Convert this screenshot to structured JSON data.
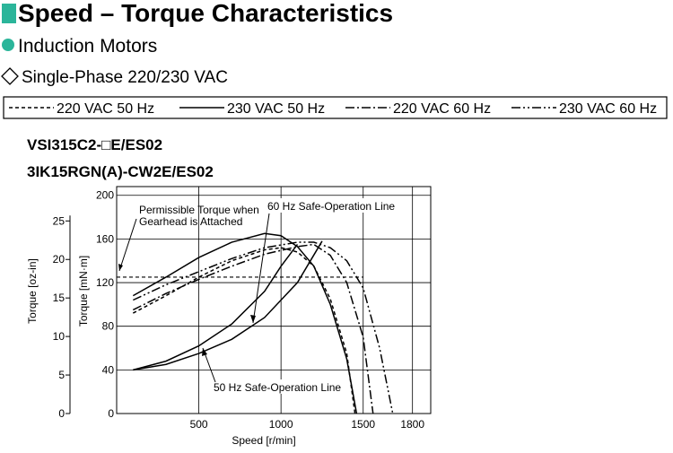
{
  "header": {
    "title": "Speed – Torque Characteristics",
    "subtitle": "Induction Motors",
    "supply": "Single-Phase 220/230 VAC"
  },
  "models": [
    "VSI315C2-□E/ES02",
    "3IK15RGN(A)-CW2E/ES02"
  ],
  "chart_data": {
    "type": "line",
    "x_label": "Speed [r/min]",
    "y_label": "Torque [mN·m]",
    "y2_label": "Torque [oz-in]",
    "xlim": [
      0,
      1900
    ],
    "xticks": [
      500,
      1000,
      1500,
      1800
    ],
    "ylim": [
      0,
      208
    ],
    "yticks": [
      0,
      40,
      80,
      120,
      160,
      200
    ],
    "y2lim": [
      0,
      29.46
    ],
    "y2ticks": [
      0,
      5,
      10,
      15,
      20,
      25
    ],
    "grid": true,
    "series": [
      {
        "name": "220 VAC 50 Hz",
        "style": "dashed",
        "color": "#000000",
        "x": [
          100,
          300,
          500,
          700,
          900,
          1000,
          1100,
          1200,
          1300,
          1400,
          1450
        ],
        "values": [
          92,
          108,
          125,
          140,
          150,
          152,
          148,
          135,
          105,
          55,
          0
        ]
      },
      {
        "name": "230 VAC 50 Hz",
        "style": "solid",
        "color": "#000000",
        "x": [
          100,
          300,
          500,
          700,
          900,
          1000,
          1100,
          1200,
          1300,
          1400,
          1460
        ],
        "values": [
          108,
          125,
          143,
          157,
          165,
          163,
          153,
          135,
          100,
          50,
          0
        ]
      },
      {
        "name": "220 VAC 60 Hz",
        "style": "dash-dot",
        "color": "#000000",
        "x": [
          100,
          300,
          500,
          700,
          900,
          1100,
          1200,
          1300,
          1400,
          1500,
          1560
        ],
        "values": [
          95,
          110,
          123,
          135,
          146,
          153,
          155,
          145,
          120,
          70,
          0
        ]
      },
      {
        "name": "230 VAC 60 Hz",
        "style": "dash-dot-dot",
        "color": "#000000",
        "x": [
          100,
          300,
          500,
          700,
          900,
          1100,
          1200,
          1300,
          1400,
          1500,
          1600,
          1680
        ],
        "values": [
          104,
          118,
          130,
          142,
          152,
          157,
          157,
          152,
          140,
          115,
          60,
          0
        ]
      }
    ],
    "permissible": {
      "label": [
        "Permissible Torque when",
        "Gearhead is Attached"
      ],
      "x": [
        0,
        1500
      ],
      "values": [
        125,
        125
      ]
    },
    "safe_lines": [
      {
        "label": "60 Hz Safe-Operation Line",
        "x": [
          100,
          300,
          500,
          700,
          900,
          1100,
          1250
        ],
        "values": [
          40,
          45,
          55,
          68,
          88,
          120,
          158
        ]
      },
      {
        "label": "50 Hz Safe-Operation Line",
        "x": [
          100,
          300,
          500,
          700,
          900,
          1000,
          1100
        ],
        "values": [
          40,
          48,
          62,
          82,
          112,
          135,
          155
        ]
      }
    ]
  }
}
